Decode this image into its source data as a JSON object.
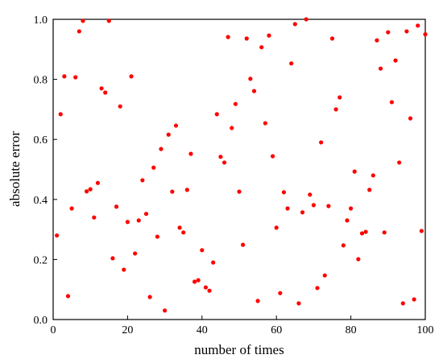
{
  "chart_data": {
    "type": "scatter",
    "x_label": "number of times",
    "y_label": "absolute error",
    "xlim": [
      0,
      100
    ],
    "ylim": [
      0,
      1.0
    ],
    "xticks": [
      0,
      20,
      40,
      60,
      80,
      100
    ],
    "yticks": [
      {
        "value": 0,
        "label": "0.0"
      },
      0.2,
      0.4,
      0.6,
      0.8,
      {
        "value": 1,
        "label": "1.0"
      }
    ],
    "grid": false,
    "series": [
      {
        "color": "#ff0000",
        "x": [
          1,
          2,
          3,
          4,
          5,
          6,
          7,
          8,
          9,
          10,
          11,
          12,
          13,
          14,
          15,
          16,
          17,
          18,
          19,
          20,
          21,
          22,
          23,
          24,
          25,
          26,
          27,
          28,
          29,
          30,
          31,
          32,
          33,
          34,
          35,
          36,
          37,
          38,
          39,
          40,
          41,
          42,
          43,
          44,
          45,
          46,
          47,
          48,
          49,
          50,
          51,
          52,
          53,
          54,
          55,
          56,
          57,
          58,
          59,
          60,
          61,
          62,
          63,
          64,
          65,
          66,
          67,
          68,
          69,
          70,
          71,
          72,
          73,
          74,
          75,
          76,
          77,
          78,
          79,
          80,
          81,
          82,
          83,
          84,
          85,
          86,
          87,
          88,
          89,
          90,
          91,
          92,
          93,
          94,
          95,
          96,
          97,
          98,
          99,
          100
        ],
        "values": [
          0.28,
          0.684,
          0.81,
          0.078,
          0.37,
          0.807,
          0.96,
          0.995,
          0.427,
          0.434,
          0.34,
          0.455,
          0.77,
          0.756,
          0.995,
          0.204,
          0.376,
          0.71,
          0.166,
          0.325,
          0.81,
          0.22,
          0.33,
          0.464,
          0.352,
          0.075,
          0.506,
          0.276,
          0.568,
          0.03,
          0.616,
          0.426,
          0.646,
          0.306,
          0.29,
          0.432,
          0.552,
          0.126,
          0.131,
          0.231,
          0.107,
          0.096,
          0.19,
          0.684,
          0.542,
          0.523,
          0.941,
          0.638,
          0.718,
          0.426,
          0.249,
          0.936,
          0.802,
          0.761,
          0.062,
          0.907,
          0.654,
          0.946,
          0.544,
          0.306,
          0.088,
          0.424,
          0.37,
          0.853,
          0.984,
          0.054,
          0.357,
          1.0,
          0.416,
          0.381,
          0.105,
          0.59,
          0.147,
          0.378,
          0.936,
          0.7,
          0.74,
          0.247,
          0.33,
          0.37,
          0.493,
          0.201,
          0.287,
          0.292,
          0.432,
          0.48,
          0.93,
          0.836,
          0.29,
          0.957,
          0.724,
          0.863,
          0.523,
          0.054,
          0.96,
          0.67,
          0.067,
          0.979,
          0.295,
          0.95
        ]
      }
    ]
  }
}
